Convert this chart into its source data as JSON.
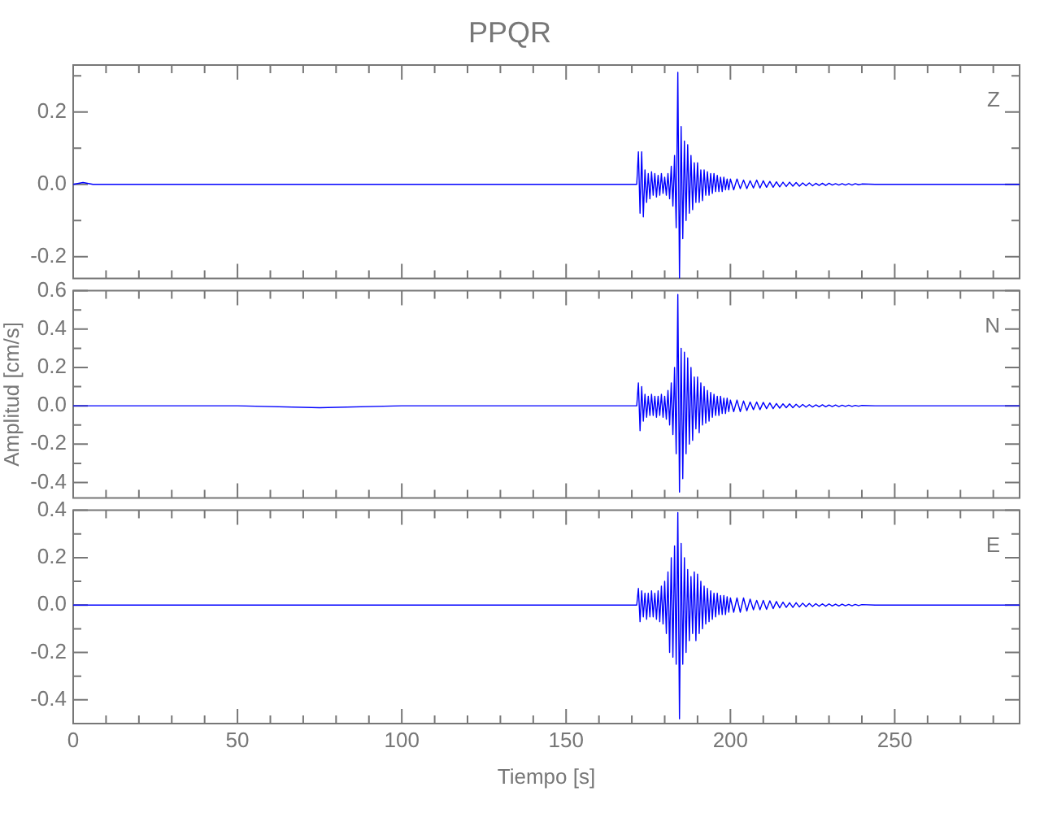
{
  "chart_data": [
    {
      "type": "line",
      "title": "PPQR",
      "tick_labels": "y",
      "xlim": [
        0,
        288
      ],
      "ylim": [
        -0.26,
        0.33
      ],
      "xticks": [
        0,
        {
          "value": 10,
          "label": null
        },
        {
          "value": 20,
          "label": null
        },
        {
          "value": 30,
          "label": null
        },
        {
          "value": 40,
          "label": null
        },
        50,
        {
          "value": 60,
          "label": null
        },
        {
          "value": 70,
          "label": null
        },
        {
          "value": 80,
          "label": null
        },
        {
          "value": 90,
          "label": null
        },
        100,
        {
          "value": 110,
          "label": null
        },
        {
          "value": 120,
          "label": null
        },
        {
          "value": 130,
          "label": null
        },
        {
          "value": 140,
          "label": null
        },
        150,
        {
          "value": 160,
          "label": null
        },
        {
          "value": 170,
          "label": null
        },
        {
          "value": 180,
          "label": null
        },
        {
          "value": 190,
          "label": null
        },
        200,
        {
          "value": 210,
          "label": null
        },
        {
          "value": 220,
          "label": null
        },
        {
          "value": 230,
          "label": null
        },
        {
          "value": 240,
          "label": null
        },
        250,
        {
          "value": 260,
          "label": null
        },
        {
          "value": 270,
          "label": null
        },
        {
          "value": 280,
          "label": null
        }
      ],
      "yticks": [
        -0.2,
        {
          "value": -0.1,
          "label": null
        },
        {
          "value": 0,
          "label": "0.0"
        },
        {
          "value": 0.1,
          "label": null
        },
        0.2,
        {
          "value": 0.3,
          "label": null
        }
      ],
      "x": [
        0,
        3,
        6,
        50,
        75,
        100,
        150,
        171.5,
        172,
        172.5,
        173,
        173.5,
        174,
        174.5,
        175,
        175.5,
        176,
        176.5,
        177,
        177.5,
        178,
        178.5,
        179,
        179.5,
        180,
        180.5,
        181,
        181.5,
        182,
        182.5,
        183,
        183.5,
        184,
        184.5,
        185,
        185.5,
        186,
        186.5,
        187,
        187.5,
        188,
        188.5,
        189,
        189.5,
        190,
        190.5,
        191,
        191.5,
        192,
        192.5,
        193,
        193.5,
        194,
        194.5,
        195,
        195.5,
        196,
        196.5,
        197,
        197.5,
        198,
        198.5,
        199,
        199.5,
        200,
        201,
        202,
        203,
        204,
        205,
        206,
        207,
        208,
        209,
        210,
        211,
        212,
        213,
        214,
        215,
        216,
        217,
        218,
        219,
        220,
        221,
        222,
        223,
        224,
        225,
        226,
        227,
        228,
        229,
        230,
        231,
        232,
        233,
        234,
        235,
        236,
        237,
        238,
        239,
        240,
        244,
        248,
        252,
        256,
        260,
        264,
        268,
        272,
        276,
        280,
        284,
        288
      ],
      "series": [
        {
          "name": "Z",
          "color": "#0000ff",
          "values": [
            0,
            0.005,
            0,
            0,
            0,
            0,
            0,
            0,
            0.09,
            -0.08,
            0.09,
            -0.09,
            0.04,
            -0.05,
            0.03,
            -0.04,
            0.035,
            -0.03,
            0.03,
            -0.035,
            0.025,
            -0.03,
            0.03,
            -0.025,
            0.02,
            -0.03,
            0.03,
            -0.04,
            0.05,
            -0.06,
            0.08,
            -0.12,
            0.31,
            -0.26,
            0.16,
            -0.15,
            0.12,
            -0.1,
            0.11,
            -0.08,
            0.08,
            -0.07,
            0.06,
            -0.05,
            0.06,
            -0.05,
            0.04,
            -0.045,
            0.04,
            -0.03,
            0.035,
            -0.03,
            0.03,
            -0.025,
            0.03,
            -0.02,
            0.025,
            -0.02,
            0.02,
            -0.02,
            0.02,
            -0.015,
            0.015,
            -0.015,
            0.015,
            -0.015,
            0.015,
            -0.012,
            0.012,
            -0.012,
            0.01,
            -0.01,
            0.012,
            -0.01,
            0.01,
            -0.008,
            0.008,
            -0.008,
            0.007,
            -0.007,
            0.006,
            -0.006,
            0.006,
            -0.005,
            0.005,
            -0.005,
            0.004,
            -0.004,
            0.004,
            -0.004,
            0.003,
            -0.003,
            0.003,
            -0.003,
            0.003,
            -0.002,
            0.002,
            -0.002,
            0.002,
            -0.002,
            0.002,
            -0.002,
            0.002,
            -0.001,
            0.001,
            0,
            0,
            0,
            0,
            0,
            0,
            0,
            0,
            0,
            0,
            0,
            0
          ]
        }
      ]
    },
    {
      "type": "line",
      "ylabel": "Amplitud [cm/s]",
      "tick_labels": "y",
      "xlim": [
        0,
        288
      ],
      "ylim": [
        -0.48,
        0.6
      ],
      "xticks": [
        0,
        {
          "value": 10,
          "label": null
        },
        {
          "value": 20,
          "label": null
        },
        {
          "value": 30,
          "label": null
        },
        {
          "value": 40,
          "label": null
        },
        50,
        {
          "value": 60,
          "label": null
        },
        {
          "value": 70,
          "label": null
        },
        {
          "value": 80,
          "label": null
        },
        {
          "value": 90,
          "label": null
        },
        100,
        {
          "value": 110,
          "label": null
        },
        {
          "value": 120,
          "label": null
        },
        {
          "value": 130,
          "label": null
        },
        {
          "value": 140,
          "label": null
        },
        150,
        {
          "value": 160,
          "label": null
        },
        {
          "value": 170,
          "label": null
        },
        {
          "value": 180,
          "label": null
        },
        {
          "value": 190,
          "label": null
        },
        200,
        {
          "value": 210,
          "label": null
        },
        {
          "value": 220,
          "label": null
        },
        {
          "value": 230,
          "label": null
        },
        {
          "value": 240,
          "label": null
        },
        250,
        {
          "value": 260,
          "label": null
        },
        {
          "value": 270,
          "label": null
        },
        {
          "value": 280,
          "label": null
        }
      ],
      "yticks": [
        -0.4,
        {
          "value": -0.3,
          "label": null
        },
        -0.2,
        {
          "value": -0.1,
          "label": null
        },
        {
          "value": 0,
          "label": "0.0"
        },
        {
          "value": 0.1,
          "label": null
        },
        0.2,
        {
          "value": 0.3,
          "label": null
        },
        0.4,
        {
          "value": 0.5,
          "label": null
        },
        0.6
      ],
      "x": [
        0,
        3,
        6,
        50,
        75,
        100,
        150,
        171.5,
        172,
        172.5,
        173,
        173.5,
        174,
        174.5,
        175,
        175.5,
        176,
        176.5,
        177,
        177.5,
        178,
        178.5,
        179,
        179.5,
        180,
        180.5,
        181,
        181.5,
        182,
        182.5,
        183,
        183.5,
        184,
        184.5,
        185,
        185.5,
        186,
        186.5,
        187,
        187.5,
        188,
        188.5,
        189,
        189.5,
        190,
        190.5,
        191,
        191.5,
        192,
        192.5,
        193,
        193.5,
        194,
        194.5,
        195,
        195.5,
        196,
        196.5,
        197,
        197.5,
        198,
        198.5,
        199,
        199.5,
        200,
        201,
        202,
        203,
        204,
        205,
        206,
        207,
        208,
        209,
        210,
        211,
        212,
        213,
        214,
        215,
        216,
        217,
        218,
        219,
        220,
        221,
        222,
        223,
        224,
        225,
        226,
        227,
        228,
        229,
        230,
        231,
        232,
        233,
        234,
        235,
        236,
        237,
        238,
        239,
        240,
        244,
        248,
        252,
        256,
        260,
        264,
        268,
        272,
        276,
        280,
        284,
        288
      ],
      "series": [
        {
          "name": "N",
          "color": "#0000ff",
          "values": [
            0,
            0,
            0,
            0,
            -0.01,
            0,
            0,
            0,
            0.12,
            -0.13,
            0.1,
            -0.08,
            0.06,
            -0.06,
            0.05,
            -0.05,
            0.06,
            -0.05,
            0.05,
            -0.06,
            0.05,
            -0.05,
            0.06,
            -0.06,
            0.05,
            -0.07,
            0.08,
            -0.1,
            0.12,
            -0.15,
            0.2,
            -0.25,
            0.58,
            -0.45,
            0.3,
            -0.38,
            0.28,
            -0.25,
            0.25,
            -0.2,
            0.2,
            -0.18,
            0.15,
            -0.12,
            0.15,
            -0.14,
            0.12,
            -0.1,
            0.1,
            -0.09,
            0.08,
            -0.08,
            0.07,
            -0.06,
            0.06,
            -0.05,
            0.05,
            -0.05,
            0.05,
            -0.04,
            0.04,
            -0.04,
            0.04,
            -0.03,
            0.03,
            -0.03,
            0.03,
            -0.03,
            0.025,
            -0.025,
            0.02,
            -0.02,
            0.02,
            -0.02,
            0.018,
            -0.015,
            0.015,
            -0.015,
            0.012,
            -0.012,
            0.01,
            -0.01,
            0.01,
            -0.01,
            0.008,
            -0.008,
            0.007,
            -0.007,
            0.006,
            -0.006,
            0.005,
            -0.005,
            0.005,
            -0.005,
            0.004,
            -0.004,
            0.004,
            -0.004,
            0.003,
            -0.003,
            0.003,
            -0.003,
            0.002,
            -0.002,
            0.002,
            0,
            0,
            0,
            0,
            0,
            0,
            0,
            0,
            0,
            0,
            0,
            0
          ]
        }
      ]
    },
    {
      "type": "line",
      "xlabel": "Tiempo [s]",
      "xlim": [
        0,
        288
      ],
      "ylim": [
        -0.5,
        0.4
      ],
      "xticks": [
        0,
        {
          "value": 10,
          "label": null
        },
        {
          "value": 20,
          "label": null
        },
        {
          "value": 30,
          "label": null
        },
        {
          "value": 40,
          "label": null
        },
        50,
        {
          "value": 60,
          "label": null
        },
        {
          "value": 70,
          "label": null
        },
        {
          "value": 80,
          "label": null
        },
        {
          "value": 90,
          "label": null
        },
        100,
        {
          "value": 110,
          "label": null
        },
        {
          "value": 120,
          "label": null
        },
        {
          "value": 130,
          "label": null
        },
        {
          "value": 140,
          "label": null
        },
        150,
        {
          "value": 160,
          "label": null
        },
        {
          "value": 170,
          "label": null
        },
        {
          "value": 180,
          "label": null
        },
        {
          "value": 190,
          "label": null
        },
        200,
        {
          "value": 210,
          "label": null
        },
        {
          "value": 220,
          "label": null
        },
        {
          "value": 230,
          "label": null
        },
        {
          "value": 240,
          "label": null
        },
        250,
        {
          "value": 260,
          "label": null
        },
        {
          "value": 270,
          "label": null
        },
        {
          "value": 280,
          "label": null
        }
      ],
      "yticks": [
        -0.4,
        {
          "value": -0.3,
          "label": null
        },
        -0.2,
        {
          "value": -0.1,
          "label": null
        },
        {
          "value": 0,
          "label": "0.0"
        },
        {
          "value": 0.1,
          "label": null
        },
        0.2,
        {
          "value": 0.3,
          "label": null
        },
        0.4
      ],
      "x": [
        0,
        3,
        6,
        50,
        75,
        100,
        150,
        171.5,
        172,
        172.5,
        173,
        173.5,
        174,
        174.5,
        175,
        175.5,
        176,
        176.5,
        177,
        177.5,
        178,
        178.5,
        179,
        179.5,
        180,
        180.5,
        181,
        181.5,
        182,
        182.5,
        183,
        183.5,
        184,
        184.5,
        185,
        185.5,
        186,
        186.5,
        187,
        187.5,
        188,
        188.5,
        189,
        189.5,
        190,
        190.5,
        191,
        191.5,
        192,
        192.5,
        193,
        193.5,
        194,
        194.5,
        195,
        195.5,
        196,
        196.5,
        197,
        197.5,
        198,
        198.5,
        199,
        199.5,
        200,
        201,
        202,
        203,
        204,
        205,
        206,
        207,
        208,
        209,
        210,
        211,
        212,
        213,
        214,
        215,
        216,
        217,
        218,
        219,
        220,
        221,
        222,
        223,
        224,
        225,
        226,
        227,
        228,
        229,
        230,
        231,
        232,
        233,
        234,
        235,
        236,
        237,
        238,
        239,
        240,
        244,
        248,
        252,
        256,
        260,
        264,
        268,
        272,
        276,
        280,
        284,
        288
      ],
      "series": [
        {
          "name": "E",
          "color": "#0000ff",
          "values": [
            0,
            0,
            0,
            0,
            0,
            0,
            0,
            0,
            0.07,
            -0.07,
            0.06,
            -0.05,
            0.05,
            -0.06,
            0.05,
            -0.05,
            0.06,
            -0.05,
            0.05,
            -0.06,
            0.06,
            -0.07,
            0.08,
            -0.08,
            0.1,
            -0.12,
            0.14,
            -0.2,
            0.2,
            -0.22,
            0.25,
            -0.25,
            0.39,
            -0.48,
            0.26,
            -0.25,
            0.2,
            -0.2,
            0.15,
            -0.15,
            0.12,
            -0.12,
            0.14,
            -0.15,
            0.13,
            -0.12,
            0.1,
            -0.1,
            0.08,
            -0.08,
            0.07,
            -0.07,
            0.06,
            -0.06,
            0.05,
            -0.05,
            0.05,
            -0.04,
            0.04,
            -0.04,
            0.04,
            -0.04,
            0.035,
            -0.03,
            0.03,
            -0.03,
            0.03,
            -0.03,
            0.03,
            -0.025,
            0.025,
            -0.02,
            0.02,
            -0.02,
            0.02,
            -0.018,
            0.018,
            -0.015,
            0.015,
            -0.012,
            0.012,
            -0.01,
            0.01,
            -0.01,
            0.01,
            -0.008,
            0.008,
            -0.007,
            0.007,
            -0.006,
            0.006,
            -0.005,
            0.005,
            -0.005,
            0.005,
            -0.004,
            0.004,
            -0.004,
            0.004,
            -0.003,
            0.003,
            -0.003,
            0.003,
            -0.002,
            0.002,
            0,
            0,
            0,
            0,
            0,
            0,
            0,
            0,
            0,
            0,
            0,
            0
          ]
        }
      ]
    }
  ]
}
